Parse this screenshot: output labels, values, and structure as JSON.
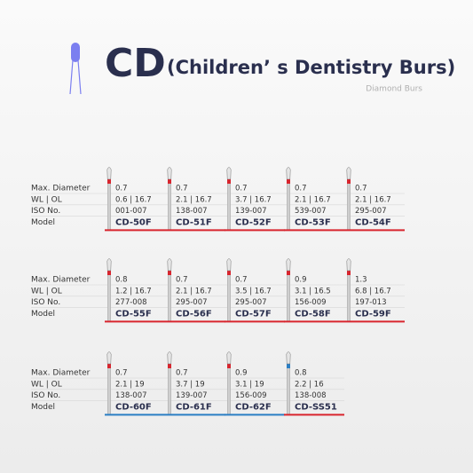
{
  "header": {
    "title": "CD",
    "subtitle": "(Children’ s Dentistry Burs)",
    "caption": "Diamond Burs"
  },
  "groups": [
    {
      "row_labels": [
        "Max. Diameter",
        "WL | OL",
        "ISO No.",
        "Model"
      ],
      "items": [
        {
          "diameter": "0.7",
          "wl_ol": "0.6 | 16.7",
          "iso": "001-007",
          "model": "CD-50F",
          "stripe": "#d8252e",
          "underline": "#d8252e"
        },
        {
          "diameter": "0.7",
          "wl_ol": "2.1 | 16.7",
          "iso": "138-007",
          "model": "CD-51F",
          "stripe": "#d8252e",
          "underline": "#d8252e"
        },
        {
          "diameter": "0.7",
          "wl_ol": "3.7 | 16.7",
          "iso": "139-007",
          "model": "CD-52F",
          "stripe": "#d8252e",
          "underline": "#d8252e"
        },
        {
          "diameter": "0.7",
          "wl_ol": "2.1 | 16.7",
          "iso": "539-007",
          "model": "CD-53F",
          "stripe": "#d8252e",
          "underline": "#d8252e"
        },
        {
          "diameter": "0.7",
          "wl_ol": "2.1 | 16.7",
          "iso": "295-007",
          "model": "CD-54F",
          "stripe": "#d8252e",
          "underline": "#d8252e"
        }
      ]
    },
    {
      "row_labels": [
        "Max. Diameter",
        "WL | OL",
        "ISO No.",
        "Model"
      ],
      "items": [
        {
          "diameter": "0.8",
          "wl_ol": "1.2 | 16.7",
          "iso": "277-008",
          "model": "CD-55F",
          "stripe": "#d8252e",
          "underline": "#d8252e"
        },
        {
          "diameter": "0.7",
          "wl_ol": "2.1 | 16.7",
          "iso": "295-007",
          "model": "CD-56F",
          "stripe": "#d8252e",
          "underline": "#d8252e"
        },
        {
          "diameter": "0.7",
          "wl_ol": "3.5 | 16.7",
          "iso": "295-007",
          "model": "CD-57F",
          "stripe": "#d8252e",
          "underline": "#d8252e"
        },
        {
          "diameter": "0.9",
          "wl_ol": "3.1 | 16.5",
          "iso": "156-009",
          "model": "CD-58F",
          "stripe": "#d8252e",
          "underline": "#d8252e"
        },
        {
          "diameter": "1.3",
          "wl_ol": "6.8 | 16.7",
          "iso": "197-013",
          "model": "CD-59F",
          "stripe": "#d8252e",
          "underline": "#d8252e"
        }
      ]
    },
    {
      "row_labels": [
        "Max. Diameter",
        "WL | OL",
        "ISO No.",
        "Model"
      ],
      "items": [
        {
          "diameter": "0.7",
          "wl_ol": "2.1 | 19",
          "iso": "138-007",
          "model": "CD-60F",
          "stripe": "#d8252e",
          "underline": "#2b7fc4"
        },
        {
          "diameter": "0.7",
          "wl_ol": "3.7 | 19",
          "iso": "139-007",
          "model": "CD-61F",
          "stripe": "#d8252e",
          "underline": "#2b7fc4"
        },
        {
          "diameter": "0.9",
          "wl_ol": "3.1 | 19",
          "iso": "156-009",
          "model": "CD-62F",
          "stripe": "#d8252e",
          "underline": "#2b7fc4"
        },
        {
          "diameter": "0.8",
          "wl_ol": "2.2 | 16",
          "iso": "138-008",
          "model": "CD-SS51",
          "stripe": "#2b7fc4",
          "underline": "#d8252e"
        }
      ]
    }
  ]
}
